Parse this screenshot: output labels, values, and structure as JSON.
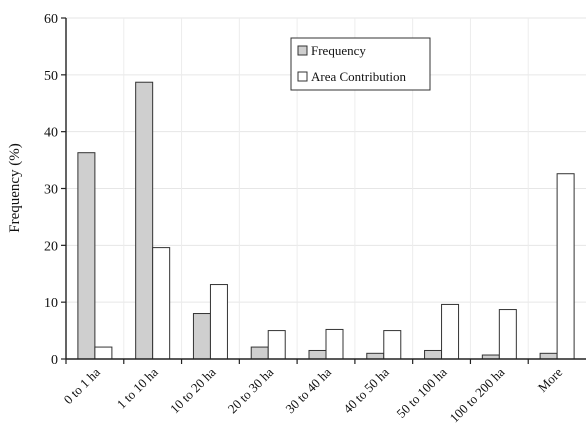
{
  "chart_data": {
    "type": "bar",
    "title": "",
    "xlabel": "",
    "ylabel": "Frequency (%)",
    "ylim": [
      0,
      60
    ],
    "yticks": [
      0,
      10,
      20,
      30,
      40,
      50,
      60
    ],
    "categories": [
      "0 to 1 ha",
      "1 to 10 ha",
      "10 to 20 ha",
      "20 to 30 ha",
      "30 to 40 ha",
      "40 to 50 ha",
      "50 to 100 ha",
      "100 to 200 ha",
      "More"
    ],
    "series": [
      {
        "name": "Frequency",
        "values": [
          36.3,
          48.7,
          8.0,
          2.1,
          1.5,
          1.0,
          1.5,
          0.7,
          1.0
        ],
        "color": "#cfcfcf"
      },
      {
        "name": "Area Contribution",
        "values": [
          2.1,
          19.6,
          13.1,
          5.0,
          5.2,
          5.0,
          9.6,
          8.7,
          32.6
        ],
        "color": "#ffffff"
      }
    ],
    "legend_position": "top-right",
    "grid": true
  }
}
